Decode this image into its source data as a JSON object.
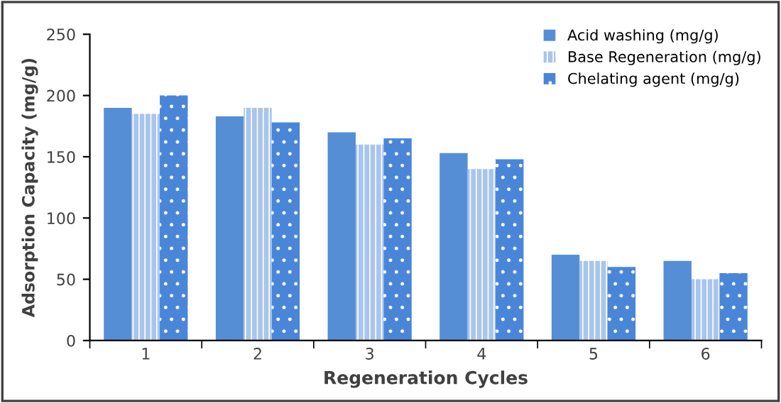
{
  "chart_data": {
    "type": "bar",
    "xlabel": "Regeneration Cycles",
    "ylabel": "Adsorption Capacity (mg/g)",
    "categories": [
      "1",
      "2",
      "3",
      "4",
      "5",
      "6"
    ],
    "series": [
      {
        "name": "Acid washing (mg/g)",
        "color": "#558ed5",
        "values": [
          190,
          183,
          170,
          153,
          70,
          65
        ]
      },
      {
        "name": "Base Regeneration (mg/g)",
        "color": "#a8c5ec",
        "values": [
          185,
          190,
          160,
          140,
          65,
          50
        ]
      },
      {
        "name": "Chelating agent (mg/g)",
        "color": "#4a86d8",
        "values": [
          200,
          178,
          165,
          148,
          60,
          55
        ]
      }
    ],
    "ylim": [
      0,
      250
    ],
    "yticks": [
      0,
      50,
      100,
      150,
      200,
      250
    ],
    "grid": false,
    "legend": "top right"
  }
}
